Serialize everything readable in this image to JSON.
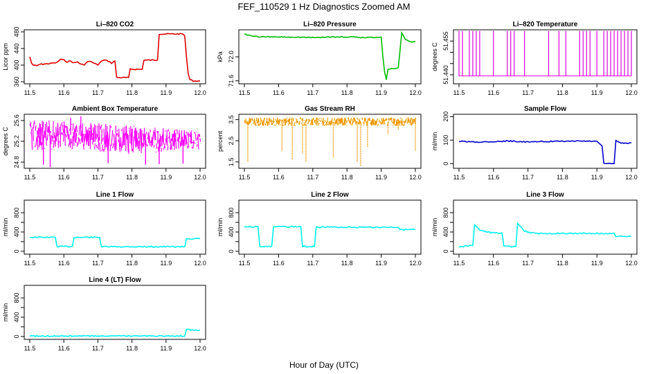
{
  "figure": {
    "title": "FEF_110529  1 Hz Diagnostics Zoomed AM",
    "xlabel": "Hour of Day (UTC)"
  },
  "chart_data": [
    {
      "id": "co2",
      "type": "line",
      "title": "Li–820 CO2",
      "ylabel": "Licor ppm",
      "color": "#dd0000",
      "xlim": [
        11.5,
        12.0
      ],
      "ylim": [
        355,
        485
      ],
      "yticks": [
        {
          "v": 360,
          "t": "360"
        },
        {
          "v": 400,
          "t": "400"
        },
        {
          "v": 440,
          "t": "440"
        },
        {
          "v": 480,
          "t": "480"
        }
      ],
      "series": [
        {
          "x": [
            11.5,
            11.505,
            11.51,
            11.52,
            11.53,
            11.55,
            11.57,
            11.58,
            11.59,
            11.6,
            11.61,
            11.62,
            11.63,
            11.64,
            11.65,
            11.66,
            11.67,
            11.68,
            11.69,
            11.7,
            11.71,
            11.72,
            11.73,
            11.74,
            11.75,
            11.755,
            11.79,
            11.795,
            11.83,
            11.835,
            11.875,
            11.88,
            11.95,
            11.955,
            11.96,
            11.965,
            11.97,
            11.98,
            11.99,
            12.0
          ],
          "y": [
            420,
            405,
            400,
            398,
            402,
            403,
            405,
            406,
            414,
            412,
            408,
            410,
            405,
            408,
            402,
            400,
            410,
            408,
            404,
            400,
            410,
            412,
            410,
            405,
            410,
            370,
            370,
            390,
            390,
            412,
            412,
            475,
            475,
            470,
            420,
            380,
            365,
            362,
            362,
            362
          ]
        }
      ]
    },
    {
      "id": "pressure",
      "type": "line",
      "title": "Li–820 Pressure",
      "ylabel": "kPa",
      "color": "#00bb00",
      "xlim": [
        11.5,
        12.0
      ],
      "ylim": [
        71.55,
        72.45
      ],
      "yticks": [
        {
          "v": 71.6,
          "t": "71.6"
        },
        {
          "v": 72.0,
          "t": "72.0"
        }
      ],
      "series": [
        {
          "x": [
            11.5,
            11.52,
            11.55,
            11.6,
            11.65,
            11.7,
            11.75,
            11.8,
            11.85,
            11.9,
            11.905,
            11.91,
            11.915,
            11.92,
            11.93,
            11.94,
            11.95,
            11.955,
            11.96,
            11.97,
            11.98,
            11.99,
            12.0
          ],
          "y": [
            72.38,
            72.35,
            72.33,
            72.33,
            72.33,
            72.32,
            72.33,
            72.33,
            72.32,
            72.33,
            72.0,
            71.75,
            71.62,
            71.8,
            71.8,
            71.81,
            71.82,
            72.1,
            72.4,
            72.3,
            72.27,
            72.25,
            72.26
          ]
        }
      ]
    },
    {
      "id": "licor-temp",
      "type": "line",
      "title": "Li–820 Temperature",
      "ylabel": "degrees C",
      "color": "#dd00dd",
      "xlim": [
        11.5,
        12.0
      ],
      "ylim": [
        51.436,
        51.46
      ],
      "yticks": [
        {
          "v": 51.44,
          "t": "51.440"
        },
        {
          "v": 51.445,
          "t": ""
        },
        {
          "v": 51.45,
          "t": ""
        },
        {
          "v": 51.455,
          "t": "51.455"
        }
      ],
      "series": [
        {
          "base": 51.4395,
          "high": 51.4595,
          "spikes": [
            11.5,
            11.51,
            11.53,
            11.54,
            11.55,
            11.56,
            11.6,
            11.64,
            11.65,
            11.66,
            11.69,
            11.76,
            11.79,
            11.81,
            11.85,
            11.86,
            11.87,
            11.88,
            11.9,
            11.92,
            11.93,
            11.94,
            11.95,
            11.96,
            11.97,
            11.98,
            11.99,
            12.0
          ]
        }
      ]
    },
    {
      "id": "box-temp",
      "type": "line",
      "title": "Ambient Box Temperature",
      "ylabel": "degrees C",
      "color": "#ff00ff",
      "xlim": [
        11.5,
        12.0
      ],
      "ylim": [
        24.68,
        25.72
      ],
      "yticks": [
        {
          "v": 24.8,
          "t": "24.8"
        },
        {
          "v": 25.2,
          "t": "25.2"
        },
        {
          "v": 25.6,
          "t": "25.6"
        }
      ],
      "series": [
        {
          "noise_band": [
            [
              11.5,
              25.0,
              25.6
            ],
            [
              11.6,
              25.05,
              25.62
            ],
            [
              11.7,
              25.0,
              25.55
            ],
            [
              11.8,
              24.95,
              25.5
            ],
            [
              11.9,
              25.0,
              25.45
            ],
            [
              12.0,
              25.05,
              25.4
            ]
          ],
          "spikes": [
            [
              11.56,
              24.7
            ],
            [
              11.62,
              25.65
            ],
            [
              11.65,
              25.68
            ],
            [
              11.84,
              24.75
            ],
            [
              11.73,
              24.78
            ],
            [
              11.54,
              24.75
            ],
            [
              11.88,
              24.76
            ],
            [
              11.95,
              24.77
            ]
          ]
        }
      ]
    },
    {
      "id": "gas-rh",
      "type": "line",
      "title": "Gas Stream RH",
      "ylabel": "percent",
      "color": "#ee9900",
      "xlim": [
        11.5,
        12.0
      ],
      "ylim": [
        1.2,
        3.75
      ],
      "yticks": [
        {
          "v": 1.5,
          "t": "1.5"
        },
        {
          "v": 2.5,
          "t": "2.5"
        },
        {
          "v": 3.5,
          "t": "3.5"
        }
      ],
      "series": [
        {
          "noise_band": [
            [
              11.5,
              3.2,
              3.6
            ],
            [
              11.75,
              3.2,
              3.6
            ],
            [
              12.0,
              3.2,
              3.6
            ]
          ],
          "spikes": [
            [
              11.51,
              1.5
            ],
            [
              11.61,
              2.0
            ],
            [
              11.64,
              1.6
            ],
            [
              11.67,
              1.9
            ],
            [
              11.68,
              1.5
            ],
            [
              11.76,
              1.7
            ],
            [
              11.83,
              1.5
            ],
            [
              11.84,
              1.3
            ],
            [
              11.86,
              2.2
            ],
            [
              11.92,
              2.8
            ],
            [
              11.95,
              3.0
            ],
            [
              12.0,
              2.0
            ]
          ]
        }
      ]
    },
    {
      "id": "sample-flow",
      "type": "line",
      "title": "Sample Flow",
      "ylabel": "ml/min",
      "color": "#0000cc",
      "xlim": [
        11.5,
        12.0
      ],
      "ylim": [
        -20,
        210
      ],
      "yticks": [
        {
          "v": 0,
          "t": "0"
        },
        {
          "v": 100,
          "t": "100"
        },
        {
          "v": 200,
          "t": "200"
        }
      ],
      "series": [
        {
          "x": [
            11.5,
            11.55,
            11.6,
            11.65,
            11.7,
            11.75,
            11.8,
            11.85,
            11.9,
            11.915,
            11.92,
            11.95,
            11.955,
            11.96,
            11.97,
            12.0
          ],
          "y": [
            95,
            92,
            94,
            96,
            92,
            94,
            95,
            96,
            95,
            75,
            0,
            0,
            100,
            92,
            88,
            88
          ]
        }
      ]
    },
    {
      "id": "line1-flow",
      "type": "line",
      "title": "Line 1 Flow",
      "ylabel": "ml/min",
      "color": "#00eeee",
      "xlim": [
        11.5,
        12.0
      ],
      "ylim": [
        -60,
        1060
      ],
      "yticks": [
        {
          "v": 0,
          "t": "0"
        },
        {
          "v": 200,
          "t": ""
        },
        {
          "v": 400,
          "t": "400"
        },
        {
          "v": 600,
          "t": ""
        },
        {
          "v": 800,
          "t": "800"
        }
      ],
      "series": [
        {
          "x": [
            11.5,
            11.575,
            11.58,
            11.625,
            11.63,
            11.705,
            11.71,
            11.955,
            11.96,
            12.0
          ],
          "y": [
            290,
            290,
            100,
            100,
            290,
            290,
            95,
            95,
            260,
            260
          ]
        }
      ]
    },
    {
      "id": "line2-flow",
      "type": "line",
      "title": "Line 2 Flow",
      "ylabel": "ml/min",
      "color": "#00eeee",
      "xlim": [
        11.5,
        12.0
      ],
      "ylim": [
        -60,
        1060
      ],
      "yticks": [
        {
          "v": 0,
          "t": "0"
        },
        {
          "v": 200,
          "t": ""
        },
        {
          "v": 400,
          "t": "400"
        },
        {
          "v": 600,
          "t": ""
        },
        {
          "v": 800,
          "t": "800"
        }
      ],
      "series": [
        {
          "x": [
            11.5,
            11.54,
            11.545,
            11.58,
            11.585,
            11.665,
            11.67,
            11.705,
            11.71,
            11.95,
            11.955,
            12.0
          ],
          "y": [
            510,
            510,
            100,
            100,
            510,
            510,
            100,
            100,
            500,
            500,
            450,
            450
          ]
        }
      ]
    },
    {
      "id": "line3-flow",
      "type": "line",
      "title": "Line 3 Flow",
      "ylabel": "ml/min",
      "color": "#00eeee",
      "xlim": [
        11.5,
        12.0
      ],
      "ylim": [
        -60,
        1060
      ],
      "yticks": [
        {
          "v": 0,
          "t": "0"
        },
        {
          "v": 200,
          "t": ""
        },
        {
          "v": 400,
          "t": "400"
        },
        {
          "v": 600,
          "t": ""
        },
        {
          "v": 800,
          "t": "800"
        }
      ],
      "series": [
        {
          "x": [
            11.5,
            11.54,
            11.545,
            11.56,
            11.58,
            11.6,
            11.625,
            11.63,
            11.665,
            11.67,
            11.69,
            11.72,
            11.75,
            11.8,
            11.9,
            11.95,
            11.955,
            12.0
          ],
          "y": [
            90,
            120,
            550,
            450,
            400,
            380,
            380,
            100,
            100,
            580,
            420,
            370,
            370,
            370,
            370,
            370,
            310,
            310
          ]
        }
      ]
    },
    {
      "id": "line4-flow",
      "type": "line",
      "title": "Line 4 (LT) Flow",
      "ylabel": "ml/min",
      "color": "#00eeee",
      "xlim": [
        11.5,
        12.0
      ],
      "ylim": [
        -60,
        1060
      ],
      "yticks": [
        {
          "v": 0,
          "t": "0"
        },
        {
          "v": 200,
          "t": ""
        },
        {
          "v": 400,
          "t": "400"
        },
        {
          "v": 600,
          "t": ""
        },
        {
          "v": 800,
          "t": "800"
        }
      ],
      "series": [
        {
          "x": [
            11.5,
            11.6,
            11.7,
            11.8,
            11.9,
            11.955,
            11.96,
            12.0
          ],
          "y": [
            10,
            10,
            10,
            10,
            10,
            10,
            140,
            130
          ]
        }
      ]
    }
  ],
  "xticks": [
    "11.5",
    "11.6",
    "11.7",
    "11.8",
    "11.9",
    "12.0"
  ]
}
